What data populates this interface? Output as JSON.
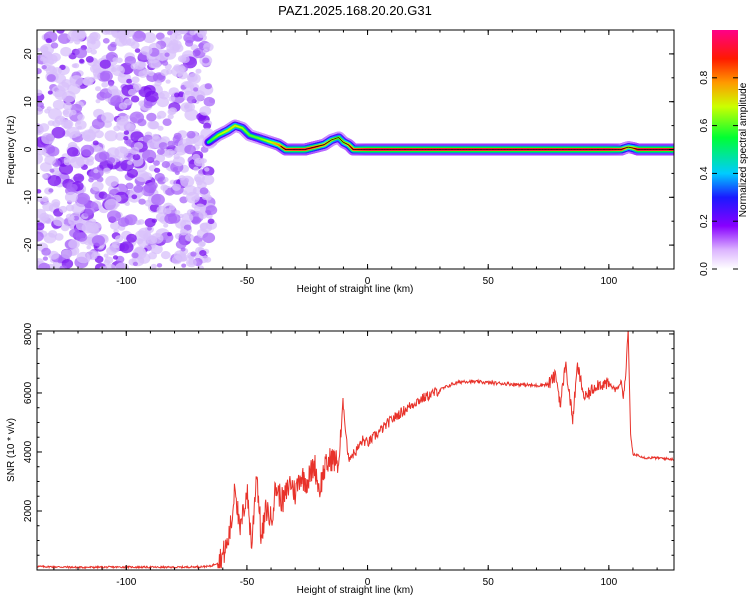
{
  "page_title": "PAZ1.2025.168.20.20.G31",
  "chart_data": [
    {
      "type": "heatmap",
      "xlabel": "Height of straight line (km)",
      "ylabel": "Frequency (Hz)",
      "xlim": [
        -137,
        127
      ],
      "ylim": [
        -25,
        25
      ],
      "xticks": [
        -100,
        -50,
        0,
        50,
        100
      ],
      "yticks": [
        -20,
        -10,
        0,
        10,
        20
      ],
      "grid": false,
      "colorbar": {
        "label": "Normalized spectral amplitude",
        "range": [
          0,
          1
        ],
        "ticks": [
          0.0,
          0.2,
          0.4,
          0.6,
          0.8
        ],
        "tick_labels": [
          "0.0",
          "0.2",
          "0.4",
          "0.6",
          "0.8"
        ],
        "colormap": [
          "#ffffff",
          "#8800ff",
          "#0033ff",
          "#00ccff",
          "#00ff33",
          "#ffff00",
          "#ff8800",
          "#ff0000",
          "#ff0088"
        ]
      },
      "noise_region": {
        "x": [
          -137,
          -65
        ],
        "y": [
          -25,
          25
        ],
        "amplitude": 0.1
      },
      "signal_track": {
        "x": [
          -66,
          -62,
          -58,
          -55,
          -52,
          -49,
          -46,
          -43,
          -40,
          -37,
          -34,
          -30,
          -26,
          -22,
          -18,
          -15,
          -12,
          -10,
          -8,
          -6,
          0,
          20,
          40,
          60,
          80,
          100,
          105,
          108,
          110,
          112,
          127
        ],
        "freq": [
          1.5,
          3,
          4,
          5,
          4.5,
          3,
          2.5,
          2,
          1.5,
          1,
          0,
          0,
          0,
          0.5,
          1,
          2,
          2.5,
          1.5,
          1,
          0,
          0,
          0,
          0,
          0,
          0,
          0,
          0,
          0.5,
          0.3,
          0,
          0
        ],
        "amplitude": [
          0.55,
          0.65,
          0.7,
          0.7,
          0.65,
          0.6,
          0.6,
          0.65,
          0.7,
          0.8,
          0.9,
          0.95,
          0.95,
          0.9,
          0.8,
          0.7,
          0.65,
          0.7,
          0.8,
          0.9,
          1,
          1,
          1,
          1,
          1,
          1,
          0.95,
          0.7,
          0.8,
          1,
          1
        ]
      }
    },
    {
      "type": "line",
      "xlabel": "Height of straight line (km)",
      "ylabel": "SNR (10 * v/v)",
      "xlim": [
        -137,
        127
      ],
      "ylim": [
        0,
        8100
      ],
      "xticks": [
        -100,
        -50,
        0,
        50,
        100
      ],
      "yticks": [
        2000,
        4000,
        6000,
        8000
      ],
      "grid": false,
      "series": [
        {
          "color": "#e8322a",
          "x": [
            -137,
            -120,
            -100,
            -80,
            -70,
            -65,
            -62,
            -60,
            -58,
            -56,
            -55,
            -53,
            -50,
            -48,
            -46,
            -44,
            -42,
            -40,
            -38,
            -35,
            -32,
            -30,
            -28,
            -25,
            -22,
            -20,
            -18,
            -15,
            -12,
            -10,
            -8,
            -5,
            -2,
            0,
            5,
            10,
            15,
            20,
            25,
            30,
            35,
            40,
            50,
            60,
            70,
            75,
            78,
            80,
            82,
            85,
            87,
            90,
            95,
            100,
            103,
            105,
            106,
            107,
            108,
            109,
            110,
            112,
            115,
            120,
            127
          ],
          "y": [
            120,
            90,
            100,
            90,
            110,
            130,
            250,
            500,
            900,
            1800,
            3100,
            1200,
            2700,
            800,
            3400,
            1000,
            2100,
            1700,
            2800,
            2300,
            3000,
            2600,
            3200,
            3000,
            3600,
            2700,
            3400,
            3800,
            3600,
            5600,
            3800,
            4000,
            4400,
            4300,
            4700,
            5100,
            5400,
            5700,
            5900,
            6100,
            6300,
            6400,
            6350,
            6300,
            6250,
            6300,
            6600,
            5600,
            7000,
            5100,
            6900,
            5800,
            6300,
            6300,
            6100,
            6400,
            5900,
            6600,
            8200,
            4600,
            3900,
            3900,
            3800,
            3800,
            3750
          ]
        }
      ]
    }
  ]
}
